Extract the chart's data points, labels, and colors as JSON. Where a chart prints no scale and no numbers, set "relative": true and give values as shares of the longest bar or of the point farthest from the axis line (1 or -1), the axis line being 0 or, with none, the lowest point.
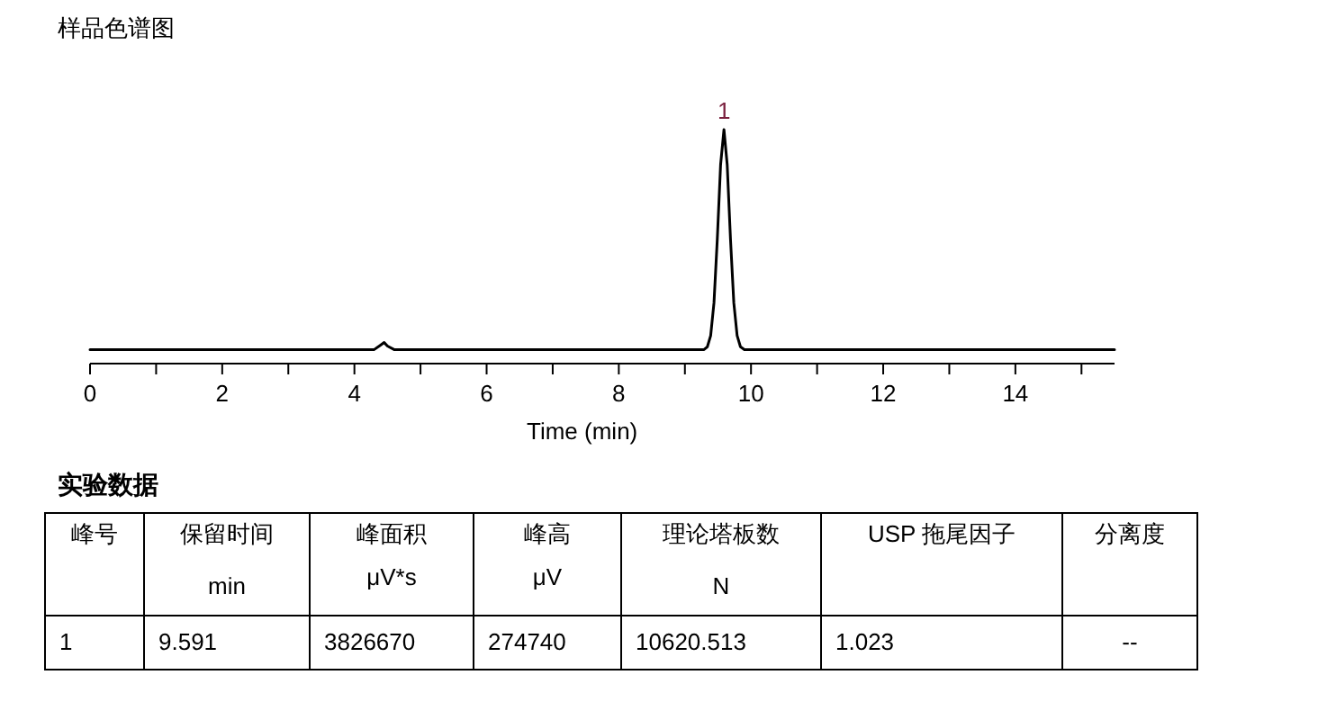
{
  "chart_data": {
    "type": "line",
    "title": "样品色谱图",
    "xlabel": "Time (min)",
    "relative": true,
    "x": [
      0,
      4.3,
      4.4,
      4.45,
      4.5,
      4.6,
      9.29,
      9.34,
      9.39,
      9.44,
      9.49,
      9.54,
      9.591,
      9.64,
      9.69,
      9.74,
      9.79,
      9.84,
      9.9,
      15.5
    ],
    "series": [
      {
        "color": "#000000",
        "values": [
          0.06,
          0.06,
          0.08,
          0.09,
          0.075,
          0.06,
          0.06,
          0.072,
          0.12,
          0.26,
          0.53,
          0.85,
          1,
          0.85,
          0.53,
          0.26,
          0.12,
          0.072,
          0.06,
          0.06
        ]
      }
    ],
    "xlim": [
      0,
      15.5
    ],
    "xticks": [
      0,
      {
        "value": 1,
        "label": null
      },
      2,
      {
        "value": 3,
        "label": null
      },
      4,
      {
        "value": 5,
        "label": null
      },
      6,
      {
        "value": 7,
        "label": null
      },
      8,
      {
        "value": 9,
        "label": null
      },
      10,
      {
        "value": 11,
        "label": null
      },
      12,
      {
        "value": 13,
        "label": null
      },
      14,
      {
        "value": 15,
        "label": null
      }
    ],
    "grid": false,
    "marker": "none",
    "line_style": "solid",
    "annotations": [
      {
        "text": "1",
        "x": 9.591,
        "y": 1
      },
      "实验数据",
      "峰号",
      "保留时间",
      "峰面积",
      "峰高",
      "理论塔板数",
      "USP 拖尾因子",
      "分离度",
      "min",
      "μV*s",
      "μV",
      "N",
      "1",
      "9.591",
      "3826670",
      "274740",
      "10620.513",
      "1.023",
      "--"
    ]
  }
}
